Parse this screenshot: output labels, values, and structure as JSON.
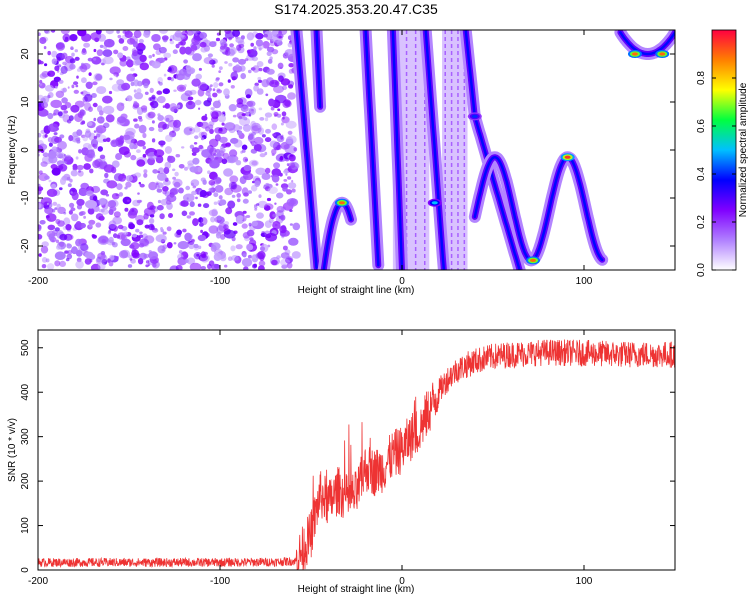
{
  "title": "S174.2025.353.20.47.C35",
  "chart_data": [
    {
      "type": "heatmap",
      "title": "S174.2025.353.20.47.C35",
      "xlabel": "Height of straight line (km)",
      "ylabel": "Frequency (Hz)",
      "xlim": [
        -200,
        150
      ],
      "ylim": [
        -25,
        25
      ],
      "xticks": [
        -200,
        -100,
        0,
        100
      ],
      "yticks": [
        -20,
        -10,
        0,
        10,
        20
      ],
      "colorbar": {
        "label": "Normalized spectral amplitude",
        "range": [
          0,
          1
        ],
        "ticks": [
          0.0,
          0.2,
          0.4,
          0.6,
          0.8
        ],
        "tick_labels": [
          "0.0",
          "0.2",
          "0.4",
          "0.6",
          "0.8"
        ],
        "colors": [
          "#ffffff",
          "#b080ff",
          "#8000ff",
          "#0000ff",
          "#00c0ff",
          "#00ff40",
          "#ffff00",
          "#ff8000",
          "#ff0040"
        ]
      },
      "features": [
        {
          "name": "noise-region",
          "x_range": [
            -200,
            -58
          ],
          "amplitude": 0.15
        },
        {
          "name": "band",
          "x_range": [
            -5,
            15
          ],
          "amplitude": 0.1
        },
        {
          "name": "band",
          "x_range": [
            22,
            36
          ],
          "amplitude": 0.1
        },
        {
          "name": "peak",
          "x": -33,
          "y": -11,
          "amplitude": 0.9
        },
        {
          "name": "peak",
          "x": 18,
          "y": -11,
          "amplitude": 0.5
        },
        {
          "name": "peak",
          "x": 40,
          "y": 7,
          "amplitude": 0.4
        },
        {
          "name": "peak",
          "x": 72,
          "y": -23,
          "amplitude": 0.9
        },
        {
          "name": "peak",
          "x": 91,
          "y": -1.5,
          "amplitude": 0.95
        },
        {
          "name": "peak",
          "x": 128,
          "y": 20,
          "amplitude": 0.9
        },
        {
          "name": "peak",
          "x": 143,
          "y": 20,
          "amplitude": 0.9
        }
      ]
    },
    {
      "type": "line",
      "xlabel": "Height of straight line (km)",
      "ylabel": "SNR (10 * v/v)",
      "xlim": [
        -200,
        150
      ],
      "ylim": [
        0,
        540
      ],
      "xticks": [
        -200,
        -100,
        0,
        100
      ],
      "yticks": [
        0,
        100,
        200,
        300,
        400,
        500
      ],
      "series": [
        {
          "name": "SNR",
          "color": "#ee3333",
          "x": [
            -200,
            -150,
            -100,
            -70,
            -58,
            -50,
            -45,
            -40,
            -35,
            -30,
            -25,
            -20,
            -15,
            -10,
            -5,
            0,
            5,
            10,
            15,
            20,
            25,
            30,
            40,
            50,
            60,
            80,
            100,
            120,
            150
          ],
          "y": [
            17,
            17,
            17,
            18,
            20,
            80,
            170,
            150,
            180,
            160,
            170,
            230,
            220,
            230,
            260,
            270,
            300,
            320,
            360,
            400,
            430,
            450,
            470,
            480,
            485,
            490,
            488,
            485,
            485
          ],
          "noise_amplitude": 25
        }
      ]
    }
  ]
}
